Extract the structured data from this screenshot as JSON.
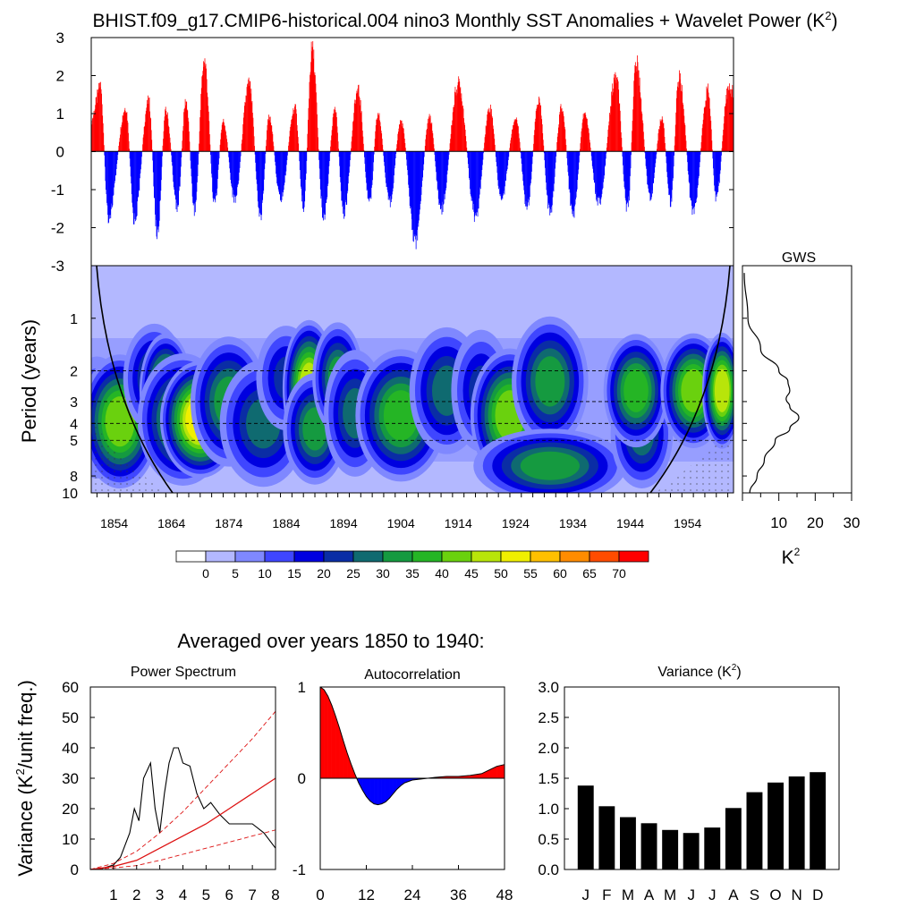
{
  "title": "BHIST.f09_g17.CMIP6-historical.004 nino3 Monthly SST Anomalies + Wavelet Power (K",
  "title_sup": "2",
  "title_close": ")",
  "colors": {
    "positive": "#ff0000",
    "negative": "#0000ff",
    "bar": "#000000",
    "red_line": "#dd1111"
  },
  "chart_data": [
    {
      "id": "sst_anomaly",
      "type": "bar",
      "title": "Monthly SST Anomalies",
      "ylim": [
        -3,
        3
      ],
      "yticks": [
        "3",
        "2",
        "1",
        "0",
        "-1",
        "-2",
        "-3"
      ],
      "xlim": [
        1850,
        1962
      ],
      "peaks": [
        {
          "year": 1851.5,
          "value": 2.0
        },
        {
          "year": 1853.0,
          "value": -1.9
        },
        {
          "year": 1856.0,
          "value": 1.3
        },
        {
          "year": 1857.5,
          "value": -2.0
        },
        {
          "year": 1860.0,
          "value": 1.5
        },
        {
          "year": 1861.5,
          "value": -2.4
        },
        {
          "year": 1863.0,
          "value": 1.2
        },
        {
          "year": 1865.0,
          "value": -1.6
        },
        {
          "year": 1866.5,
          "value": 1.5
        },
        {
          "year": 1868.0,
          "value": -1.7
        },
        {
          "year": 1869.7,
          "value": 2.7
        },
        {
          "year": 1871.5,
          "value": -1.5
        },
        {
          "year": 1873.0,
          "value": 0.9
        },
        {
          "year": 1875.0,
          "value": -1.4
        },
        {
          "year": 1877.5,
          "value": 2.0
        },
        {
          "year": 1879.5,
          "value": -1.9
        },
        {
          "year": 1881.0,
          "value": 1.0
        },
        {
          "year": 1883.0,
          "value": -1.4
        },
        {
          "year": 1885.5,
          "value": 1.3
        },
        {
          "year": 1887.0,
          "value": -1.6
        },
        {
          "year": 1888.5,
          "value": 3.0
        },
        {
          "year": 1890.5,
          "value": -1.9
        },
        {
          "year": 1892.5,
          "value": 1.2
        },
        {
          "year": 1894.0,
          "value": -1.8
        },
        {
          "year": 1896.5,
          "value": 1.8
        },
        {
          "year": 1898.5,
          "value": -1.5
        },
        {
          "year": 1900.0,
          "value": 1.1
        },
        {
          "year": 1902.0,
          "value": -1.5
        },
        {
          "year": 1904.0,
          "value": 0.9
        },
        {
          "year": 1906.5,
          "value": -2.6
        },
        {
          "year": 1909.0,
          "value": 1.0
        },
        {
          "year": 1911.0,
          "value": -1.7
        },
        {
          "year": 1914.0,
          "value": 2.0
        },
        {
          "year": 1917.0,
          "value": -1.9
        },
        {
          "year": 1919.5,
          "value": 1.3
        },
        {
          "year": 1921.5,
          "value": -1.4
        },
        {
          "year": 1924.0,
          "value": 1.0
        },
        {
          "year": 1926.0,
          "value": -1.6
        },
        {
          "year": 1928.0,
          "value": 1.5
        },
        {
          "year": 1930.0,
          "value": -1.8
        },
        {
          "year": 1932.0,
          "value": 1.3
        },
        {
          "year": 1934.0,
          "value": -1.9
        },
        {
          "year": 1936.0,
          "value": 1.1
        },
        {
          "year": 1938.5,
          "value": -1.5
        },
        {
          "year": 1941.5,
          "value": 2.2
        },
        {
          "year": 1943.5,
          "value": -1.7
        },
        {
          "year": 1945.0,
          "value": 2.6
        },
        {
          "year": 1947.5,
          "value": -1.3
        },
        {
          "year": 1949.5,
          "value": 1.0
        },
        {
          "year": 1951.0,
          "value": -1.5
        },
        {
          "year": 1952.5,
          "value": 2.2
        },
        {
          "year": 1955.0,
          "value": -1.8
        },
        {
          "year": 1957.5,
          "value": 1.8
        },
        {
          "year": 1959.0,
          "value": -1.4
        },
        {
          "year": 1961.0,
          "value": 1.8
        }
      ]
    },
    {
      "id": "wavelet_power",
      "type": "heatmap",
      "title": "Wavelet Power",
      "ylabel": "Period (years)",
      "ylim": [
        0.5,
        10
      ],
      "yticks": [
        {
          "period": 1,
          "label": "1"
        },
        {
          "period": 2,
          "label": "2"
        },
        {
          "period": 3,
          "label": "3"
        },
        {
          "period": 4,
          "label": "4"
        },
        {
          "period": 5,
          "label": "5"
        },
        {
          "period": 8,
          "label": "8"
        },
        {
          "period": 10,
          "label": "10"
        }
      ],
      "xlim": [
        1850,
        1962
      ],
      "xticks": [
        "1854",
        "1864",
        "1874",
        "1884",
        "1894",
        "1904",
        "1914",
        "1924",
        "1934",
        "1944",
        "1954"
      ],
      "dashed_periods": [
        2,
        3,
        4,
        5
      ],
      "cone_of_influence": "solid black curves near both ends",
      "colorbar_levels": [
        "0",
        "5",
        "10",
        "15",
        "20",
        "25",
        "30",
        "35",
        "40",
        "45",
        "50",
        "55",
        "60",
        "65",
        "70"
      ],
      "colorbar_colors": [
        "#ffffff",
        "#b3b8ff",
        "#7f88ff",
        "#3f46ff",
        "#0000e0",
        "#0a2da5",
        "#0f6a70",
        "#159a40",
        "#25b525",
        "#6ad10e",
        "#b8e50a",
        "#f0ef00",
        "#ffc000",
        "#ff8c00",
        "#ff4c00",
        "#ff0000"
      ],
      "blobs": [
        {
          "year": 1851,
          "period": 3.7,
          "power": 20,
          "w": 5,
          "h": 0.35
        },
        {
          "year": 1855,
          "period": 3.9,
          "power": 40,
          "w": 6,
          "h": 0.35
        },
        {
          "year": 1861,
          "period": 2.2,
          "power": 25,
          "w": 5,
          "h": 0.3
        },
        {
          "year": 1863,
          "period": 2.6,
          "power": 40,
          "w": 4,
          "h": 0.3
        },
        {
          "year": 1866,
          "period": 3.8,
          "power": 35,
          "w": 7,
          "h": 0.35
        },
        {
          "year": 1869,
          "period": 3.8,
          "power": 50,
          "w": 6,
          "h": 0.3
        },
        {
          "year": 1874,
          "period": 3.0,
          "power": 30,
          "w": 6,
          "h": 0.35
        },
        {
          "year": 1880,
          "period": 4.0,
          "power": 25,
          "w": 7,
          "h": 0.35
        },
        {
          "year": 1884,
          "period": 2.2,
          "power": 20,
          "w": 5,
          "h": 0.3
        },
        {
          "year": 1888,
          "period": 2.5,
          "power": 45,
          "w": 4,
          "h": 0.35
        },
        {
          "year": 1889,
          "period": 4.3,
          "power": 30,
          "w": 5,
          "h": 0.3
        },
        {
          "year": 1893,
          "period": 2.2,
          "power": 30,
          "w": 4,
          "h": 0.3
        },
        {
          "year": 1896,
          "period": 3.5,
          "power": 25,
          "w": 5,
          "h": 0.35
        },
        {
          "year": 1904,
          "period": 3.6,
          "power": 35,
          "w": 7,
          "h": 0.35
        },
        {
          "year": 1912,
          "period": 2.6,
          "power": 25,
          "w": 6,
          "h": 0.35
        },
        {
          "year": 1918,
          "period": 2.6,
          "power": 20,
          "w": 5,
          "h": 0.35
        },
        {
          "year": 1923,
          "period": 3.6,
          "power": 40,
          "w": 6,
          "h": 0.35
        },
        {
          "year": 1930,
          "period": 2.3,
          "power": 30,
          "w": 6,
          "h": 0.35
        },
        {
          "year": 1930,
          "period": 7.0,
          "power": 30,
          "w": 12,
          "h": 0.2
        },
        {
          "year": 1946,
          "period": 4.6,
          "power": 25,
          "w": 5,
          "h": 0.3
        },
        {
          "year": 1945,
          "period": 2.6,
          "power": 35,
          "w": 5,
          "h": 0.3
        },
        {
          "year": 1955,
          "period": 2.6,
          "power": 40,
          "w": 5,
          "h": 0.3
        },
        {
          "year": 1960,
          "period": 2.6,
          "power": 45,
          "w": 3,
          "h": 0.3
        }
      ]
    },
    {
      "id": "gws",
      "type": "line",
      "title": "GWS",
      "xlabel": "K",
      "xlabel_sup": "2",
      "xlim": [
        0,
        30
      ],
      "xticks": [
        "10",
        "20",
        "30"
      ],
      "points": [
        {
          "period": 0.55,
          "power": 0.5
        },
        {
          "period": 1.0,
          "power": 1.5
        },
        {
          "period": 1.5,
          "power": 5
        },
        {
          "period": 2.0,
          "power": 10
        },
        {
          "period": 2.3,
          "power": 12.5
        },
        {
          "period": 2.6,
          "power": 13
        },
        {
          "period": 2.9,
          "power": 12
        },
        {
          "period": 3.2,
          "power": 13
        },
        {
          "period": 3.7,
          "power": 15.5
        },
        {
          "period": 4.3,
          "power": 13
        },
        {
          "period": 5.0,
          "power": 9
        },
        {
          "period": 6.5,
          "power": 6
        },
        {
          "period": 8.0,
          "power": 4
        },
        {
          "period": 10.0,
          "power": 2
        }
      ]
    },
    {
      "id": "power_spectrum",
      "type": "line",
      "heading": "Averaged over years 1850 to 1940:",
      "title": "Power Spectrum",
      "ylabel": "Variance (K",
      "ylabel_sup": "2",
      "ylabel_end": "/unit freq.)",
      "xlim": [
        0,
        8
      ],
      "ylim": [
        0,
        60
      ],
      "xticks": [
        "1",
        "2",
        "3",
        "4",
        "5",
        "6",
        "7",
        "8"
      ],
      "yticks": [
        "0",
        "10",
        "20",
        "30",
        "40",
        "50",
        "60"
      ],
      "series": [
        {
          "name": "spectrum",
          "x": [
            0.5,
            1.0,
            1.3,
            1.5,
            1.7,
            1.9,
            2.1,
            2.3,
            2.6,
            2.8,
            3.0,
            3.2,
            3.4,
            3.6,
            3.8,
            4.0,
            4.3,
            4.6,
            4.9,
            5.2,
            5.6,
            6.0,
            6.5,
            7.0,
            7.5,
            8.0
          ],
          "y": [
            0.3,
            1.5,
            4,
            8,
            12,
            20,
            16,
            30,
            35,
            20,
            12,
            25,
            35,
            40,
            40,
            35,
            34,
            25,
            20,
            22,
            18,
            15,
            15,
            15,
            12,
            7
          ]
        },
        {
          "name": "red-noise",
          "x": [
            0,
            1,
            2,
            3,
            4,
            5,
            6,
            7,
            8
          ],
          "y": [
            0,
            1,
            3,
            7,
            11,
            15,
            20,
            25,
            30
          ]
        },
        {
          "name": "lower-bound",
          "x": [
            0,
            1,
            2,
            3,
            4,
            5,
            6,
            7,
            8
          ],
          "y": [
            0,
            0.5,
            1.3,
            3,
            5,
            7,
            9,
            11,
            13
          ]
        },
        {
          "name": "upper-bound",
          "x": [
            0,
            1,
            2,
            3,
            4,
            5,
            6,
            7,
            8
          ],
          "y": [
            0,
            2,
            6,
            12,
            19,
            27,
            35,
            43,
            52
          ]
        }
      ]
    },
    {
      "id": "autocorrelation",
      "type": "area",
      "title": "Autocorrelation",
      "xlim": [
        0,
        48
      ],
      "ylim": [
        -1,
        1
      ],
      "xticks": [
        "0",
        "12",
        "24",
        "36",
        "48"
      ],
      "yticks": [
        "1",
        "0",
        "-1"
      ],
      "x": [
        0,
        1,
        2,
        3,
        4,
        5,
        6,
        7,
        8,
        9,
        10,
        11,
        12,
        13,
        14,
        15,
        16,
        17,
        18,
        19,
        20,
        21,
        22,
        24,
        26,
        28,
        30,
        33,
        36,
        39,
        42,
        44,
        46,
        48
      ],
      "y": [
        1.0,
        0.97,
        0.9,
        0.8,
        0.68,
        0.55,
        0.41,
        0.28,
        0.16,
        0.05,
        -0.05,
        -0.13,
        -0.2,
        -0.25,
        -0.28,
        -0.29,
        -0.28,
        -0.26,
        -0.22,
        -0.17,
        -0.12,
        -0.08,
        -0.05,
        -0.02,
        -0.01,
        0.0,
        0.01,
        0.02,
        0.02,
        0.03,
        0.05,
        0.09,
        0.13,
        0.15
      ]
    },
    {
      "id": "monthly_variance",
      "type": "bar",
      "title": "Variance (K",
      "title_sup": "2",
      "title_close": ")",
      "ylim": [
        0,
        3
      ],
      "yticks": [
        "0.0",
        "0.5",
        "1.0",
        "1.5",
        "2.0",
        "2.5",
        "3.0"
      ],
      "categories": [
        "J",
        "F",
        "M",
        "A",
        "M",
        "J",
        "J",
        "A",
        "S",
        "O",
        "N",
        "D"
      ],
      "values": [
        1.38,
        1.04,
        0.86,
        0.76,
        0.65,
        0.6,
        0.69,
        1.01,
        1.27,
        1.43,
        1.53,
        1.6
      ]
    }
  ]
}
